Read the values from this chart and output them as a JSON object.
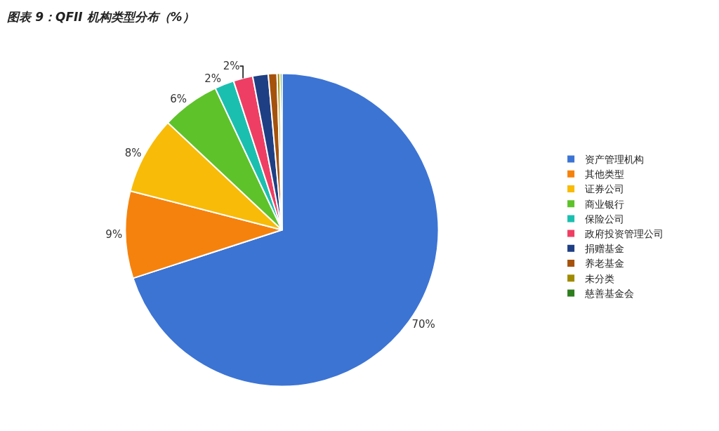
{
  "chart_data": {
    "type": "pie",
    "title": "图表 9：QFII 机构类型分布（%）",
    "categories": [
      "资产管理机构",
      "其他类型",
      "证券公司",
      "商业银行",
      "保险公司",
      "政府投资管理公司",
      "捐赠基金",
      "养老基金",
      "未分类",
      "慈善基金会"
    ],
    "values": [
      70,
      9,
      8,
      6,
      2,
      2,
      1.6,
      0.9,
      0.3,
      0.2
    ],
    "value_labels": [
      "70%",
      "9%",
      "8%",
      "6%",
      "2%",
      "2%",
      null,
      null,
      null,
      null
    ],
    "colors": [
      "#3c74d4",
      "#f5820d",
      "#f8bb07",
      "#5ec22a",
      "#1bbfb0",
      "#ef3e63",
      "#1f3f84",
      "#a5520d",
      "#a08b00",
      "#2e7d1e"
    ],
    "legend": "right"
  }
}
